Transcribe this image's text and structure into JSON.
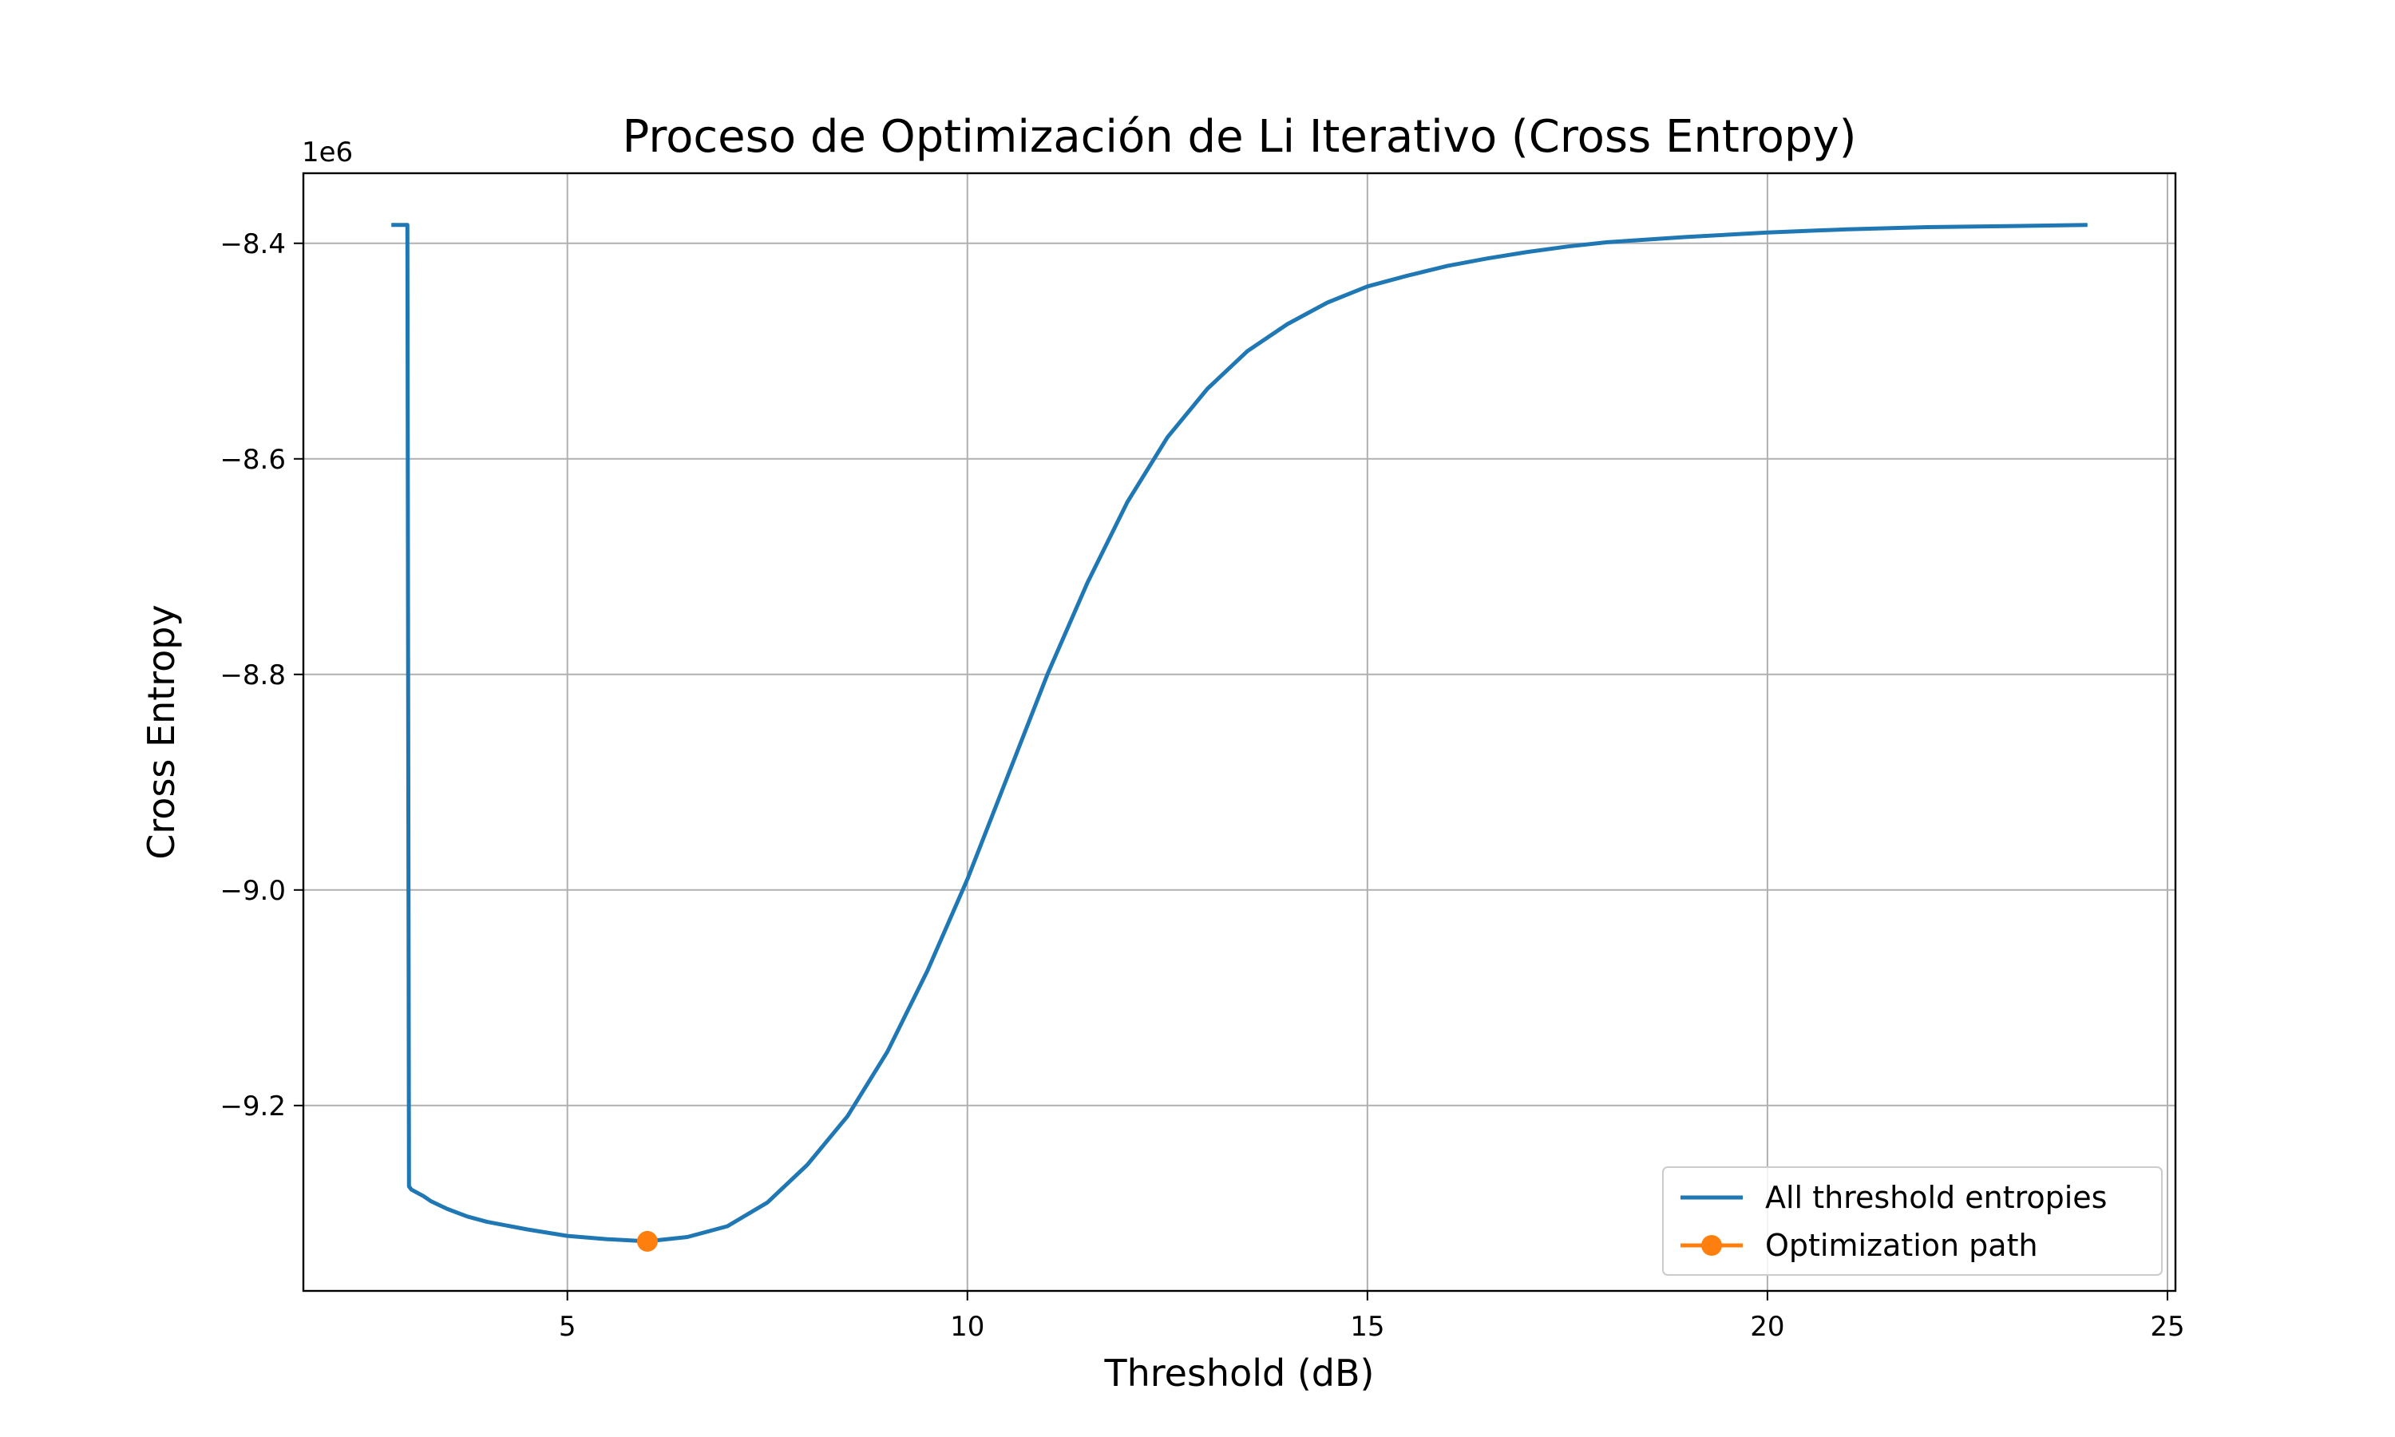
{
  "chart_data": {
    "type": "line",
    "title": "Proceso de Optimización de Li Iterativo (Cross Entropy)",
    "xlabel": "Threshold (dB)",
    "ylabel": "Cross Entropy",
    "y_offset_label": "1e6",
    "xlim": [
      1.7,
      25.1
    ],
    "ylim": [
      -9.372,
      -8.335
    ],
    "x_ticks": [
      5,
      10,
      15,
      20,
      25
    ],
    "y_ticks": [
      -8.4,
      -8.6,
      -8.8,
      -9.0,
      -9.2
    ],
    "x_tick_labels": [
      "5",
      "10",
      "15",
      "20",
      "25"
    ],
    "y_tick_labels": [
      "−8.4",
      "−8.6",
      "−8.8",
      "−9.0",
      "−9.2"
    ],
    "grid": true,
    "legend_position": "lower-right",
    "series": [
      {
        "name": "All threshold entropies",
        "color": "#1f77b4",
        "marker": "none",
        "x": [
          2.8,
          3.0,
          3.02,
          3.05,
          3.1,
          3.2,
          3.3,
          3.5,
          3.75,
          4.0,
          4.5,
          5.0,
          5.5,
          6.0,
          6.5,
          7.0,
          7.5,
          8.0,
          8.5,
          9.0,
          9.5,
          10.0,
          10.5,
          11.0,
          11.5,
          12.0,
          12.5,
          13.0,
          13.5,
          14.0,
          14.5,
          15.0,
          15.5,
          16.0,
          16.5,
          17.0,
          17.5,
          18.0,
          19.0,
          20.0,
          21.0,
          22.0,
          23.0,
          24.0
        ],
        "y": [
          -8.383,
          -8.383,
          -9.275,
          -9.278,
          -9.28,
          -9.284,
          -9.289,
          -9.296,
          -9.303,
          -9.308,
          -9.315,
          -9.321,
          -9.324,
          -9.326,
          -9.322,
          -9.312,
          -9.29,
          -9.255,
          -9.21,
          -9.15,
          -9.075,
          -8.99,
          -8.895,
          -8.8,
          -8.715,
          -8.64,
          -8.58,
          -8.535,
          -8.5,
          -8.475,
          -8.455,
          -8.44,
          -8.43,
          -8.421,
          -8.414,
          -8.408,
          -8.403,
          -8.399,
          -8.394,
          -8.39,
          -8.387,
          -8.385,
          -8.384,
          -8.383
        ]
      },
      {
        "name": "Optimization path",
        "color": "#ff7f0e",
        "marker": "circle",
        "x": [
          6.0
        ],
        "y": [
          -9.326
        ]
      }
    ]
  }
}
